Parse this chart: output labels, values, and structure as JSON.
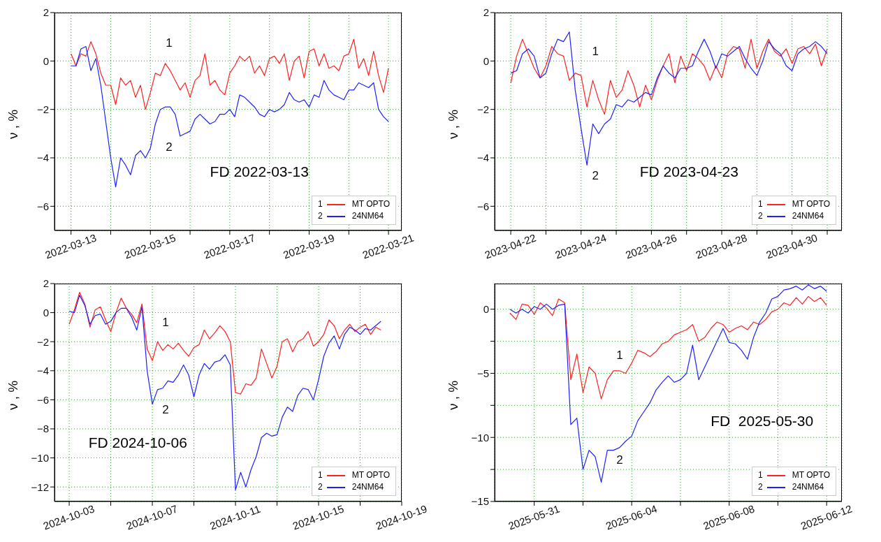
{
  "chart_data": [
    {
      "type": "line",
      "title": "FD 2022-03-13",
      "ylabel": "ν , %",
      "legend": "bottom right",
      "grid": true,
      "xlim": [
        "2022-03-12T14:00",
        "2022-03-21T08:00"
      ],
      "ylim": [
        -7,
        2
      ],
      "yticks": [
        -6,
        -4,
        -2,
        0,
        2
      ],
      "xticks": [
        "2022-03-13",
        {
          "value": "2022-03-14",
          "label": null
        },
        "2022-03-15",
        {
          "value": "2022-03-16",
          "label": null
        },
        "2022-03-17",
        {
          "value": "2022-03-18",
          "label": null
        },
        "2022-03-19",
        {
          "value": "2022-03-20",
          "label": null
        },
        "2022-03-21"
      ],
      "annotations": [
        "1",
        "2"
      ],
      "x": [
        "2022-03-13T00:00",
        "2022-03-13T03:00",
        "2022-03-13T06:00",
        "2022-03-13T09:00",
        "2022-03-13T12:00",
        "2022-03-13T15:00",
        "2022-03-13T18:00",
        "2022-03-13T21:00",
        "2022-03-14T00:00",
        "2022-03-14T03:00",
        "2022-03-14T06:00",
        "2022-03-14T09:00",
        "2022-03-14T12:00",
        "2022-03-14T15:00",
        "2022-03-14T18:00",
        "2022-03-14T21:00",
        "2022-03-15T00:00",
        "2022-03-15T03:00",
        "2022-03-15T06:00",
        "2022-03-15T09:00",
        "2022-03-15T12:00",
        "2022-03-15T15:00",
        "2022-03-15T18:00",
        "2022-03-15T21:00",
        "2022-03-16T00:00",
        "2022-03-16T03:00",
        "2022-03-16T06:00",
        "2022-03-16T09:00",
        "2022-03-16T12:00",
        "2022-03-16T15:00",
        "2022-03-16T18:00",
        "2022-03-16T21:00",
        "2022-03-17T00:00",
        "2022-03-17T03:00",
        "2022-03-17T06:00",
        "2022-03-17T09:00",
        "2022-03-17T12:00",
        "2022-03-17T15:00",
        "2022-03-17T18:00",
        "2022-03-17T21:00",
        "2022-03-18T00:00",
        "2022-03-18T03:00",
        "2022-03-18T06:00",
        "2022-03-18T09:00",
        "2022-03-18T12:00",
        "2022-03-18T15:00",
        "2022-03-18T18:00",
        "2022-03-18T21:00",
        "2022-03-19T00:00",
        "2022-03-19T03:00",
        "2022-03-19T06:00",
        "2022-03-19T09:00",
        "2022-03-19T12:00",
        "2022-03-19T15:00",
        "2022-03-19T18:00",
        "2022-03-19T21:00",
        "2022-03-20T00:00",
        "2022-03-20T03:00",
        "2022-03-20T06:00",
        "2022-03-20T09:00",
        "2022-03-20T12:00",
        "2022-03-20T15:00",
        "2022-03-20T18:00",
        "2022-03-20T21:00",
        "2022-03-21T00:00"
      ],
      "series": [
        {
          "name": "MT OPTO",
          "color": "#ff2020",
          "values": [
            0.3,
            -0.2,
            0.3,
            0.2,
            0.8,
            0.3,
            -0.5,
            -1.0,
            -1.0,
            -1.8,
            -0.7,
            -1.0,
            -0.8,
            -1.5,
            -1.0,
            -2.0,
            -1.3,
            -0.5,
            -0.6,
            -0.1,
            -0.4,
            -0.8,
            -1.2,
            -0.9,
            -1.5,
            -0.8,
            -0.6,
            0.3,
            -1.0,
            -0.8,
            -1.2,
            -1.4,
            -0.5,
            -0.2,
            0.2,
            0.0,
            0.2,
            -0.5,
            -0.2,
            -0.6,
            0.1,
            0.2,
            -0.1,
            0.3,
            -0.8,
            0.0,
            0.2,
            -0.7,
            0.4,
            0.5,
            -0.2,
            0.3,
            -0.3,
            -0.2,
            -0.4,
            0.2,
            0.3,
            0.9,
            -0.3,
            0.1,
            -0.6,
            0.4,
            -0.6,
            -1.3,
            -0.3
          ]
        },
        {
          "name": "24NM64",
          "color": "#2020ff",
          "values": [
            -0.2,
            -0.2,
            0.5,
            0.6,
            -0.4,
            0.1,
            -1.0,
            -2.5,
            -4.0,
            -5.2,
            -4.0,
            -4.3,
            -4.7,
            -3.9,
            -3.7,
            -4.0,
            -3.6,
            -2.6,
            -2.0,
            -1.9,
            -1.9,
            -2.2,
            -3.1,
            -3.0,
            -2.9,
            -2.4,
            -2.2,
            -2.4,
            -2.6,
            -2.5,
            -2.2,
            -2.2,
            -2.0,
            -2.3,
            -1.4,
            -1.5,
            -1.7,
            -1.9,
            -2.2,
            -2.3,
            -2.0,
            -2.1,
            -2.0,
            -1.8,
            -1.3,
            -1.6,
            -1.7,
            -1.6,
            -1.9,
            -1.4,
            -1.5,
            -0.8,
            -1.2,
            -1.4,
            -1.5,
            -1.6,
            -1.2,
            -1.2,
            -0.9,
            -1.0,
            -1.1,
            -0.9,
            -2.0,
            -2.3,
            -2.5
          ]
        }
      ]
    },
    {
      "type": "line",
      "title": "FD 2023-04-23",
      "ylabel": "ν , %",
      "legend": "bottom right",
      "grid": true,
      "xlim": [
        "2023-04-21T13:00",
        "2023-05-01T10:00"
      ],
      "ylim": [
        -7,
        2
      ],
      "yticks": [
        -6,
        -4,
        -2,
        0,
        2
      ],
      "xticks": [
        "2023-04-22",
        {
          "value": "2023-04-23",
          "label": null
        },
        "2023-04-24",
        {
          "value": "2023-04-25",
          "label": null
        },
        "2023-04-26",
        {
          "value": "2023-04-27",
          "label": null
        },
        "2023-04-28",
        {
          "value": "2023-04-29",
          "label": null
        },
        "2023-04-30",
        {
          "value": "2023-05-01",
          "label": null
        }
      ],
      "annotations": [
        "1",
        "2"
      ],
      "x": [
        "2023-04-22T00:00",
        "2023-04-22T04:00",
        "2023-04-22T08:00",
        "2023-04-22T12:00",
        "2023-04-22T16:00",
        "2023-04-22T20:00",
        "2023-04-23T00:00",
        "2023-04-23T04:00",
        "2023-04-23T08:00",
        "2023-04-23T12:00",
        "2023-04-23T16:00",
        "2023-04-23T20:00",
        "2023-04-24T00:00",
        "2023-04-24T04:00",
        "2023-04-24T08:00",
        "2023-04-24T12:00",
        "2023-04-24T16:00",
        "2023-04-24T20:00",
        "2023-04-25T00:00",
        "2023-04-25T04:00",
        "2023-04-25T08:00",
        "2023-04-25T12:00",
        "2023-04-25T16:00",
        "2023-04-25T20:00",
        "2023-04-26T00:00",
        "2023-04-26T04:00",
        "2023-04-26T08:00",
        "2023-04-26T12:00",
        "2023-04-26T16:00",
        "2023-04-26T20:00",
        "2023-04-27T00:00",
        "2023-04-27T04:00",
        "2023-04-27T08:00",
        "2023-04-27T12:00",
        "2023-04-27T16:00",
        "2023-04-27T20:00",
        "2023-04-28T00:00",
        "2023-04-28T04:00",
        "2023-04-28T08:00",
        "2023-04-28T12:00",
        "2023-04-28T16:00",
        "2023-04-28T20:00",
        "2023-04-29T00:00",
        "2023-04-29T04:00",
        "2023-04-29T08:00",
        "2023-04-29T12:00",
        "2023-04-29T16:00",
        "2023-04-29T20:00",
        "2023-04-30T00:00",
        "2023-04-30T04:00",
        "2023-04-30T08:00",
        "2023-04-30T12:00",
        "2023-04-30T16:00",
        "2023-04-30T20:00",
        "2023-05-01T00:00"
      ],
      "series": [
        {
          "name": "MT OPTO",
          "color": "#ff2020",
          "values": [
            -0.9,
            0.2,
            0.9,
            0.3,
            -0.3,
            -0.7,
            -0.2,
            0.6,
            0.3,
            0.2,
            -0.8,
            -0.5,
            -0.6,
            -1.9,
            -0.8,
            -1.6,
            -2.2,
            -0.8,
            -1.5,
            -1.2,
            -0.4,
            -1.0,
            -1.9,
            -1.0,
            -1.6,
            -0.8,
            -0.2,
            0.3,
            -0.9,
            0.2,
            -0.4,
            0.3,
            0.1,
            -0.2,
            -0.8,
            -0.2,
            -0.7,
            0.3,
            0.6,
            0.5,
            -0.3,
            0.9,
            -0.3,
            0.4,
            0.9,
            0.4,
            0.2,
            0.5,
            -0.1,
            0.5,
            0.6,
            0.3,
            0.7,
            -0.2,
            0.5
          ]
        },
        {
          "name": "24NM64",
          "color": "#2020ff",
          "values": [
            -0.5,
            -0.4,
            0.3,
            0.5,
            0.2,
            -0.7,
            -0.5,
            0.3,
            0.9,
            0.8,
            1.2,
            -1.2,
            -2.8,
            -4.3,
            -2.6,
            -3.0,
            -2.6,
            -2.4,
            -1.8,
            -1.9,
            -1.6,
            -1.7,
            -1.5,
            -1.3,
            -1.4,
            -0.7,
            -0.2,
            -0.5,
            -0.7,
            -0.3,
            -0.3,
            -0.2,
            0.4,
            0.9,
            0.4,
            -0.3,
            0.3,
            0.2,
            0.4,
            0.6,
            0.1,
            -0.3,
            -0.6,
            0.0,
            0.8,
            0.5,
            0.3,
            -0.2,
            -0.4,
            0.3,
            0.5,
            0.6,
            0.8,
            0.6,
            0.3
          ]
        }
      ]
    },
    {
      "type": "line",
      "title": "FD 2024-10-06",
      "ylabel": "ν , %",
      "legend": "bottom right",
      "grid": true,
      "xlim": [
        "2024-10-02T07:00",
        "2024-10-19T00:00"
      ],
      "ylim": [
        -13,
        2
      ],
      "yticks": [
        -12,
        -10,
        -8,
        -6,
        -4,
        -2,
        0,
        2
      ],
      "xticks": [
        "2024-10-03",
        {
          "value": "2024-10-05",
          "label": null
        },
        "2024-10-07",
        {
          "value": "2024-10-09",
          "label": null
        },
        "2024-10-11",
        {
          "value": "2024-10-13",
          "label": null
        },
        "2024-10-15",
        {
          "value": "2024-10-17",
          "label": null
        },
        "2024-10-19"
      ],
      "annotations": [
        "1",
        "2"
      ],
      "x": [
        "2024-10-03T00:00",
        "2024-10-03T06:00",
        "2024-10-03T12:00",
        "2024-10-03T18:00",
        "2024-10-04T00:00",
        "2024-10-04T06:00",
        "2024-10-04T12:00",
        "2024-10-04T18:00",
        "2024-10-05T00:00",
        "2024-10-05T06:00",
        "2024-10-05T12:00",
        "2024-10-05T18:00",
        "2024-10-06T00:00",
        "2024-10-06T06:00",
        "2024-10-06T12:00",
        "2024-10-06T18:00",
        "2024-10-07T00:00",
        "2024-10-07T06:00",
        "2024-10-07T12:00",
        "2024-10-07T18:00",
        "2024-10-08T00:00",
        "2024-10-08T06:00",
        "2024-10-08T12:00",
        "2024-10-08T18:00",
        "2024-10-09T00:00",
        "2024-10-09T06:00",
        "2024-10-09T12:00",
        "2024-10-09T18:00",
        "2024-10-10T00:00",
        "2024-10-10T06:00",
        "2024-10-10T12:00",
        "2024-10-10T18:00",
        "2024-10-11T00:00",
        "2024-10-11T06:00",
        "2024-10-11T12:00",
        "2024-10-11T18:00",
        "2024-10-12T00:00",
        "2024-10-12T06:00",
        "2024-10-12T12:00",
        "2024-10-12T18:00",
        "2024-10-13T00:00",
        "2024-10-13T06:00",
        "2024-10-13T12:00",
        "2024-10-13T18:00",
        "2024-10-14T00:00",
        "2024-10-14T06:00",
        "2024-10-14T12:00",
        "2024-10-14T18:00",
        "2024-10-15T00:00",
        "2024-10-15T06:00",
        "2024-10-15T12:00",
        "2024-10-15T18:00",
        "2024-10-16T00:00",
        "2024-10-16T06:00",
        "2024-10-16T12:00",
        "2024-10-16T18:00",
        "2024-10-17T00:00",
        "2024-10-17T06:00",
        "2024-10-17T12:00",
        "2024-10-17T18:00",
        "2024-10-18T00:00"
      ],
      "series": [
        {
          "name": "MT OPTO",
          "color": "#ff2020",
          "values": [
            -0.8,
            0.2,
            1.4,
            0.6,
            -1.0,
            0.2,
            0.4,
            -0.5,
            -1.3,
            0.0,
            1.0,
            0.3,
            -0.1,
            -0.7,
            0.6,
            -2.5,
            -3.3,
            -2.0,
            -2.6,
            -2.2,
            -2.5,
            -2.1,
            -2.6,
            -3.0,
            -2.4,
            -2.2,
            -1.2,
            -1.8,
            -1.4,
            -0.9,
            -1.3,
            -2.0,
            -5.5,
            -5.6,
            -4.9,
            -5.0,
            -4.5,
            -2.5,
            -3.5,
            -4.5,
            -3.7,
            -2.0,
            -1.8,
            -2.7,
            -2.0,
            -1.8,
            -1.3,
            -2.3,
            -2.0,
            -1.5,
            -0.5,
            -0.9,
            -1.8,
            -1.2,
            -0.8,
            -1.3,
            -1.0,
            -0.8,
            -1.5,
            -1.0,
            -1.2
          ]
        },
        {
          "name": "24NM64",
          "color": "#2020ff",
          "values": [
            0.1,
            0.0,
            1.2,
            0.5,
            -0.8,
            -0.2,
            -0.1,
            -0.8,
            -0.6,
            0.0,
            0.3,
            0.3,
            -0.3,
            -1.2,
            0.4,
            -4.0,
            -6.3,
            -5.3,
            -5.2,
            -4.7,
            -4.8,
            -4.3,
            -3.6,
            -4.3,
            -5.8,
            -4.3,
            -3.5,
            -3.9,
            -3.4,
            -3.3,
            -2.9,
            -3.6,
            -12.2,
            -11.0,
            -12.0,
            -10.8,
            -9.9,
            -8.6,
            -8.3,
            -8.5,
            -8.4,
            -7.2,
            -6.5,
            -6.8,
            -5.7,
            -5.2,
            -5.3,
            -6.0,
            -4.6,
            -3.0,
            -2.1,
            -1.6,
            -2.5,
            -1.5,
            -1.0,
            -1.2,
            -1.5,
            -1.1,
            -1.2,
            -0.9,
            -0.6
          ]
        }
      ]
    },
    {
      "type": "line",
      "title": "FD  2025-05-30",
      "ylabel": "ν , %",
      "legend": "bottom right",
      "grid": true,
      "xlim": [
        "2025-05-29T09:00",
        "2025-06-12T15:00"
      ],
      "ylim": [
        -15,
        2
      ],
      "yticks": [
        -15,
        {
          "value": -12.5,
          "label": null
        },
        -10,
        {
          "value": -7.5,
          "label": null
        },
        -5,
        {
          "value": -2.5,
          "label": null
        },
        0
      ],
      "xticks": [
        "2025-05-31",
        {
          "value": "2025-06-02",
          "label": null
        },
        "2025-06-04",
        {
          "value": "2025-06-06",
          "label": null
        },
        "2025-06-08",
        {
          "value": "2025-06-10",
          "label": null
        },
        "2025-06-12"
      ],
      "annotations": [
        "1",
        "2"
      ],
      "x": [
        "2025-05-30T00:00",
        "2025-05-30T06:00",
        "2025-05-30T12:00",
        "2025-05-30T18:00",
        "2025-05-31T00:00",
        "2025-05-31T06:00",
        "2025-05-31T12:00",
        "2025-05-31T18:00",
        "2025-06-01T00:00",
        "2025-06-01T06:00",
        "2025-06-01T12:00",
        "2025-06-01T18:00",
        "2025-06-02T00:00",
        "2025-06-02T06:00",
        "2025-06-02T12:00",
        "2025-06-02T18:00",
        "2025-06-03T00:00",
        "2025-06-03T06:00",
        "2025-06-03T12:00",
        "2025-06-03T18:00",
        "2025-06-04T00:00",
        "2025-06-04T06:00",
        "2025-06-04T12:00",
        "2025-06-04T18:00",
        "2025-06-05T00:00",
        "2025-06-05T06:00",
        "2025-06-05T12:00",
        "2025-06-05T18:00",
        "2025-06-06T00:00",
        "2025-06-06T06:00",
        "2025-06-06T12:00",
        "2025-06-06T18:00",
        "2025-06-07T00:00",
        "2025-06-07T06:00",
        "2025-06-07T12:00",
        "2025-06-07T18:00",
        "2025-06-08T00:00",
        "2025-06-08T06:00",
        "2025-06-08T12:00",
        "2025-06-08T18:00",
        "2025-06-09T00:00",
        "2025-06-09T06:00",
        "2025-06-09T12:00",
        "2025-06-09T18:00",
        "2025-06-10T00:00",
        "2025-06-10T06:00",
        "2025-06-10T12:00",
        "2025-06-10T18:00",
        "2025-06-11T00:00",
        "2025-06-11T06:00",
        "2025-06-11T12:00",
        "2025-06-11T18:00",
        "2025-06-12T00:00"
      ],
      "series": [
        {
          "name": "MT OPTO",
          "color": "#ff2020",
          "values": [
            -0.3,
            -0.8,
            0.4,
            0.3,
            -0.4,
            0.5,
            0.1,
            -0.5,
            0.8,
            0.5,
            -5.5,
            -3.5,
            -6.5,
            -4.5,
            -5.0,
            -7.0,
            -5.5,
            -4.8,
            -4.8,
            -5.0,
            -4.2,
            -3.2,
            -3.4,
            -3.7,
            -3.3,
            -2.7,
            -2.5,
            -2.0,
            -1.8,
            -1.6,
            -1.2,
            -2.5,
            -2.2,
            -1.5,
            -1.0,
            -1.2,
            -1.8,
            -1.5,
            -1.3,
            -1.6,
            -1.0,
            -1.2,
            -0.8,
            -0.2,
            0.0,
            0.5,
            0.3,
            0.9,
            0.4,
            1.0,
            0.6,
            0.9,
            0.3
          ]
        },
        {
          "name": "24NM64",
          "color": "#2020ff",
          "values": [
            0.0,
            -0.3,
            0.0,
            -0.3,
            0.2,
            0.0,
            0.4,
            0.0,
            0.3,
            0.4,
            -9.0,
            -8.5,
            -12.5,
            -11.0,
            -11.5,
            -13.5,
            -11.0,
            -11.0,
            -10.8,
            -10.3,
            -9.9,
            -8.7,
            -8.0,
            -7.3,
            -6.3,
            -5.7,
            -5.2,
            -5.7,
            -5.5,
            -5.0,
            -2.8,
            -5.5,
            -4.5,
            -3.5,
            -2.5,
            -1.5,
            -2.6,
            -2.7,
            -3.2,
            -3.9,
            -2.2,
            -1.0,
            -0.3,
            0.8,
            1.0,
            1.5,
            1.6,
            1.8,
            1.5,
            1.9,
            1.6,
            1.8,
            1.4
          ]
        }
      ]
    }
  ]
}
